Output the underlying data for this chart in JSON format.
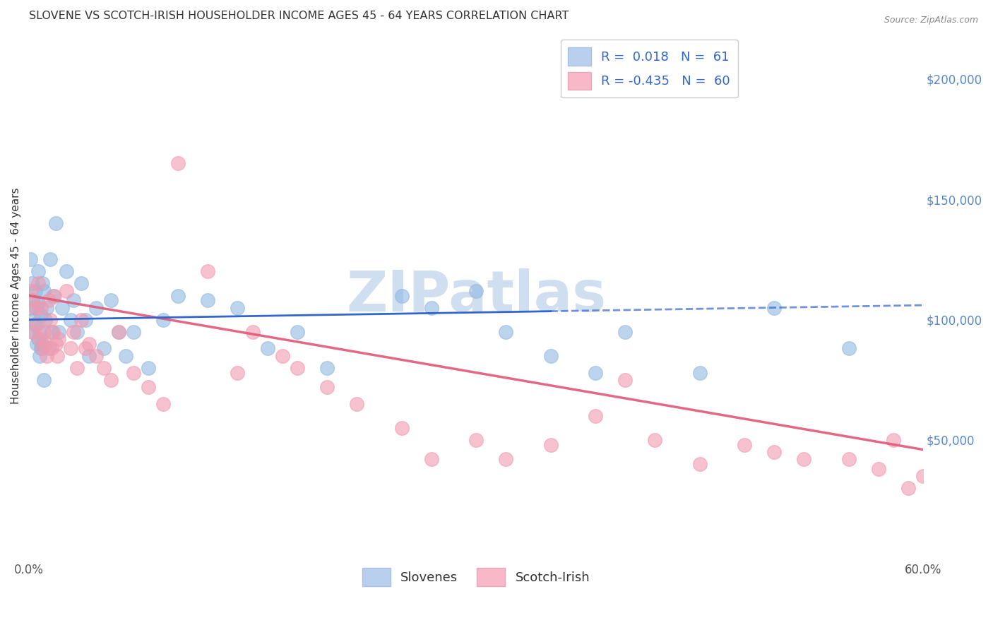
{
  "title": "SLOVENE VS SCOTCH-IRISH HOUSEHOLDER INCOME AGES 45 - 64 YEARS CORRELATION CHART",
  "source": "Source: ZipAtlas.com",
  "ylabel": "Householder Income Ages 45 - 64 years",
  "xlim": [
    0.0,
    0.6
  ],
  "ylim": [
    0,
    220000
  ],
  "yticks_right": [
    50000,
    100000,
    150000,
    200000
  ],
  "ytick_labels_right": [
    "$50,000",
    "$100,000",
    "$150,000",
    "$200,000"
  ],
  "slovene_color": "#90b8e0",
  "scotch_color": "#f09ab0",
  "line_slovene_color": "#3366cc",
  "line_scotch_color": "#e05878",
  "background_color": "#ffffff",
  "grid_color": "#cccccc",
  "title_color": "#333333",
  "axis_label_color": "#333333",
  "right_tick_color": "#5588cc",
  "watermark_color": "#d0dff0",
  "slovene_x": [
    0.001,
    0.001,
    0.002,
    0.002,
    0.003,
    0.003,
    0.004,
    0.004,
    0.005,
    0.005,
    0.006,
    0.006,
    0.006,
    0.007,
    0.007,
    0.008,
    0.008,
    0.009,
    0.009,
    0.01,
    0.01,
    0.011,
    0.012,
    0.013,
    0.014,
    0.015,
    0.016,
    0.018,
    0.02,
    0.022,
    0.025,
    0.028,
    0.03,
    0.032,
    0.035,
    0.038,
    0.04,
    0.045,
    0.05,
    0.055,
    0.06,
    0.065,
    0.07,
    0.08,
    0.09,
    0.1,
    0.12,
    0.14,
    0.16,
    0.18,
    0.2,
    0.25,
    0.27,
    0.3,
    0.32,
    0.35,
    0.38,
    0.4,
    0.45,
    0.5,
    0.55
  ],
  "slovene_y": [
    125000,
    105000,
    95000,
    115000,
    100000,
    108000,
    98000,
    112000,
    90000,
    105000,
    92000,
    107000,
    120000,
    85000,
    95000,
    88000,
    102000,
    115000,
    90000,
    75000,
    112000,
    100000,
    105000,
    88000,
    125000,
    95000,
    110000,
    140000,
    95000,
    105000,
    120000,
    100000,
    108000,
    95000,
    115000,
    100000,
    85000,
    105000,
    88000,
    108000,
    95000,
    85000,
    95000,
    80000,
    100000,
    110000,
    108000,
    105000,
    88000,
    95000,
    80000,
    110000,
    105000,
    112000,
    95000,
    85000,
    78000,
    95000,
    78000,
    105000,
    88000
  ],
  "scotch_x": [
    0.001,
    0.002,
    0.003,
    0.004,
    0.005,
    0.006,
    0.007,
    0.008,
    0.009,
    0.01,
    0.011,
    0.012,
    0.013,
    0.014,
    0.015,
    0.016,
    0.017,
    0.018,
    0.019,
    0.02,
    0.025,
    0.028,
    0.03,
    0.032,
    0.035,
    0.038,
    0.04,
    0.045,
    0.05,
    0.055,
    0.06,
    0.07,
    0.08,
    0.09,
    0.1,
    0.12,
    0.14,
    0.15,
    0.17,
    0.18,
    0.2,
    0.22,
    0.25,
    0.27,
    0.3,
    0.32,
    0.35,
    0.38,
    0.4,
    0.42,
    0.45,
    0.48,
    0.5,
    0.52,
    0.55,
    0.57,
    0.58,
    0.59,
    0.6
  ],
  "scotch_y": [
    112000,
    108000,
    95000,
    105000,
    98000,
    115000,
    92000,
    105000,
    88000,
    95000,
    90000,
    85000,
    108000,
    100000,
    88000,
    95000,
    110000,
    90000,
    85000,
    92000,
    112000,
    88000,
    95000,
    80000,
    100000,
    88000,
    90000,
    85000,
    80000,
    75000,
    95000,
    78000,
    72000,
    65000,
    165000,
    120000,
    78000,
    95000,
    85000,
    80000,
    72000,
    65000,
    55000,
    42000,
    50000,
    42000,
    48000,
    60000,
    75000,
    50000,
    40000,
    48000,
    45000,
    42000,
    42000,
    38000,
    50000,
    30000,
    35000
  ],
  "slovene_line_x0": 0.0,
  "slovene_line_x1": 0.6,
  "slovene_line_y0": 100000,
  "slovene_line_y1": 106000,
  "scotch_line_x0": 0.0,
  "scotch_line_x1": 0.6,
  "scotch_line_y0": 110000,
  "scotch_line_y1": 46000
}
